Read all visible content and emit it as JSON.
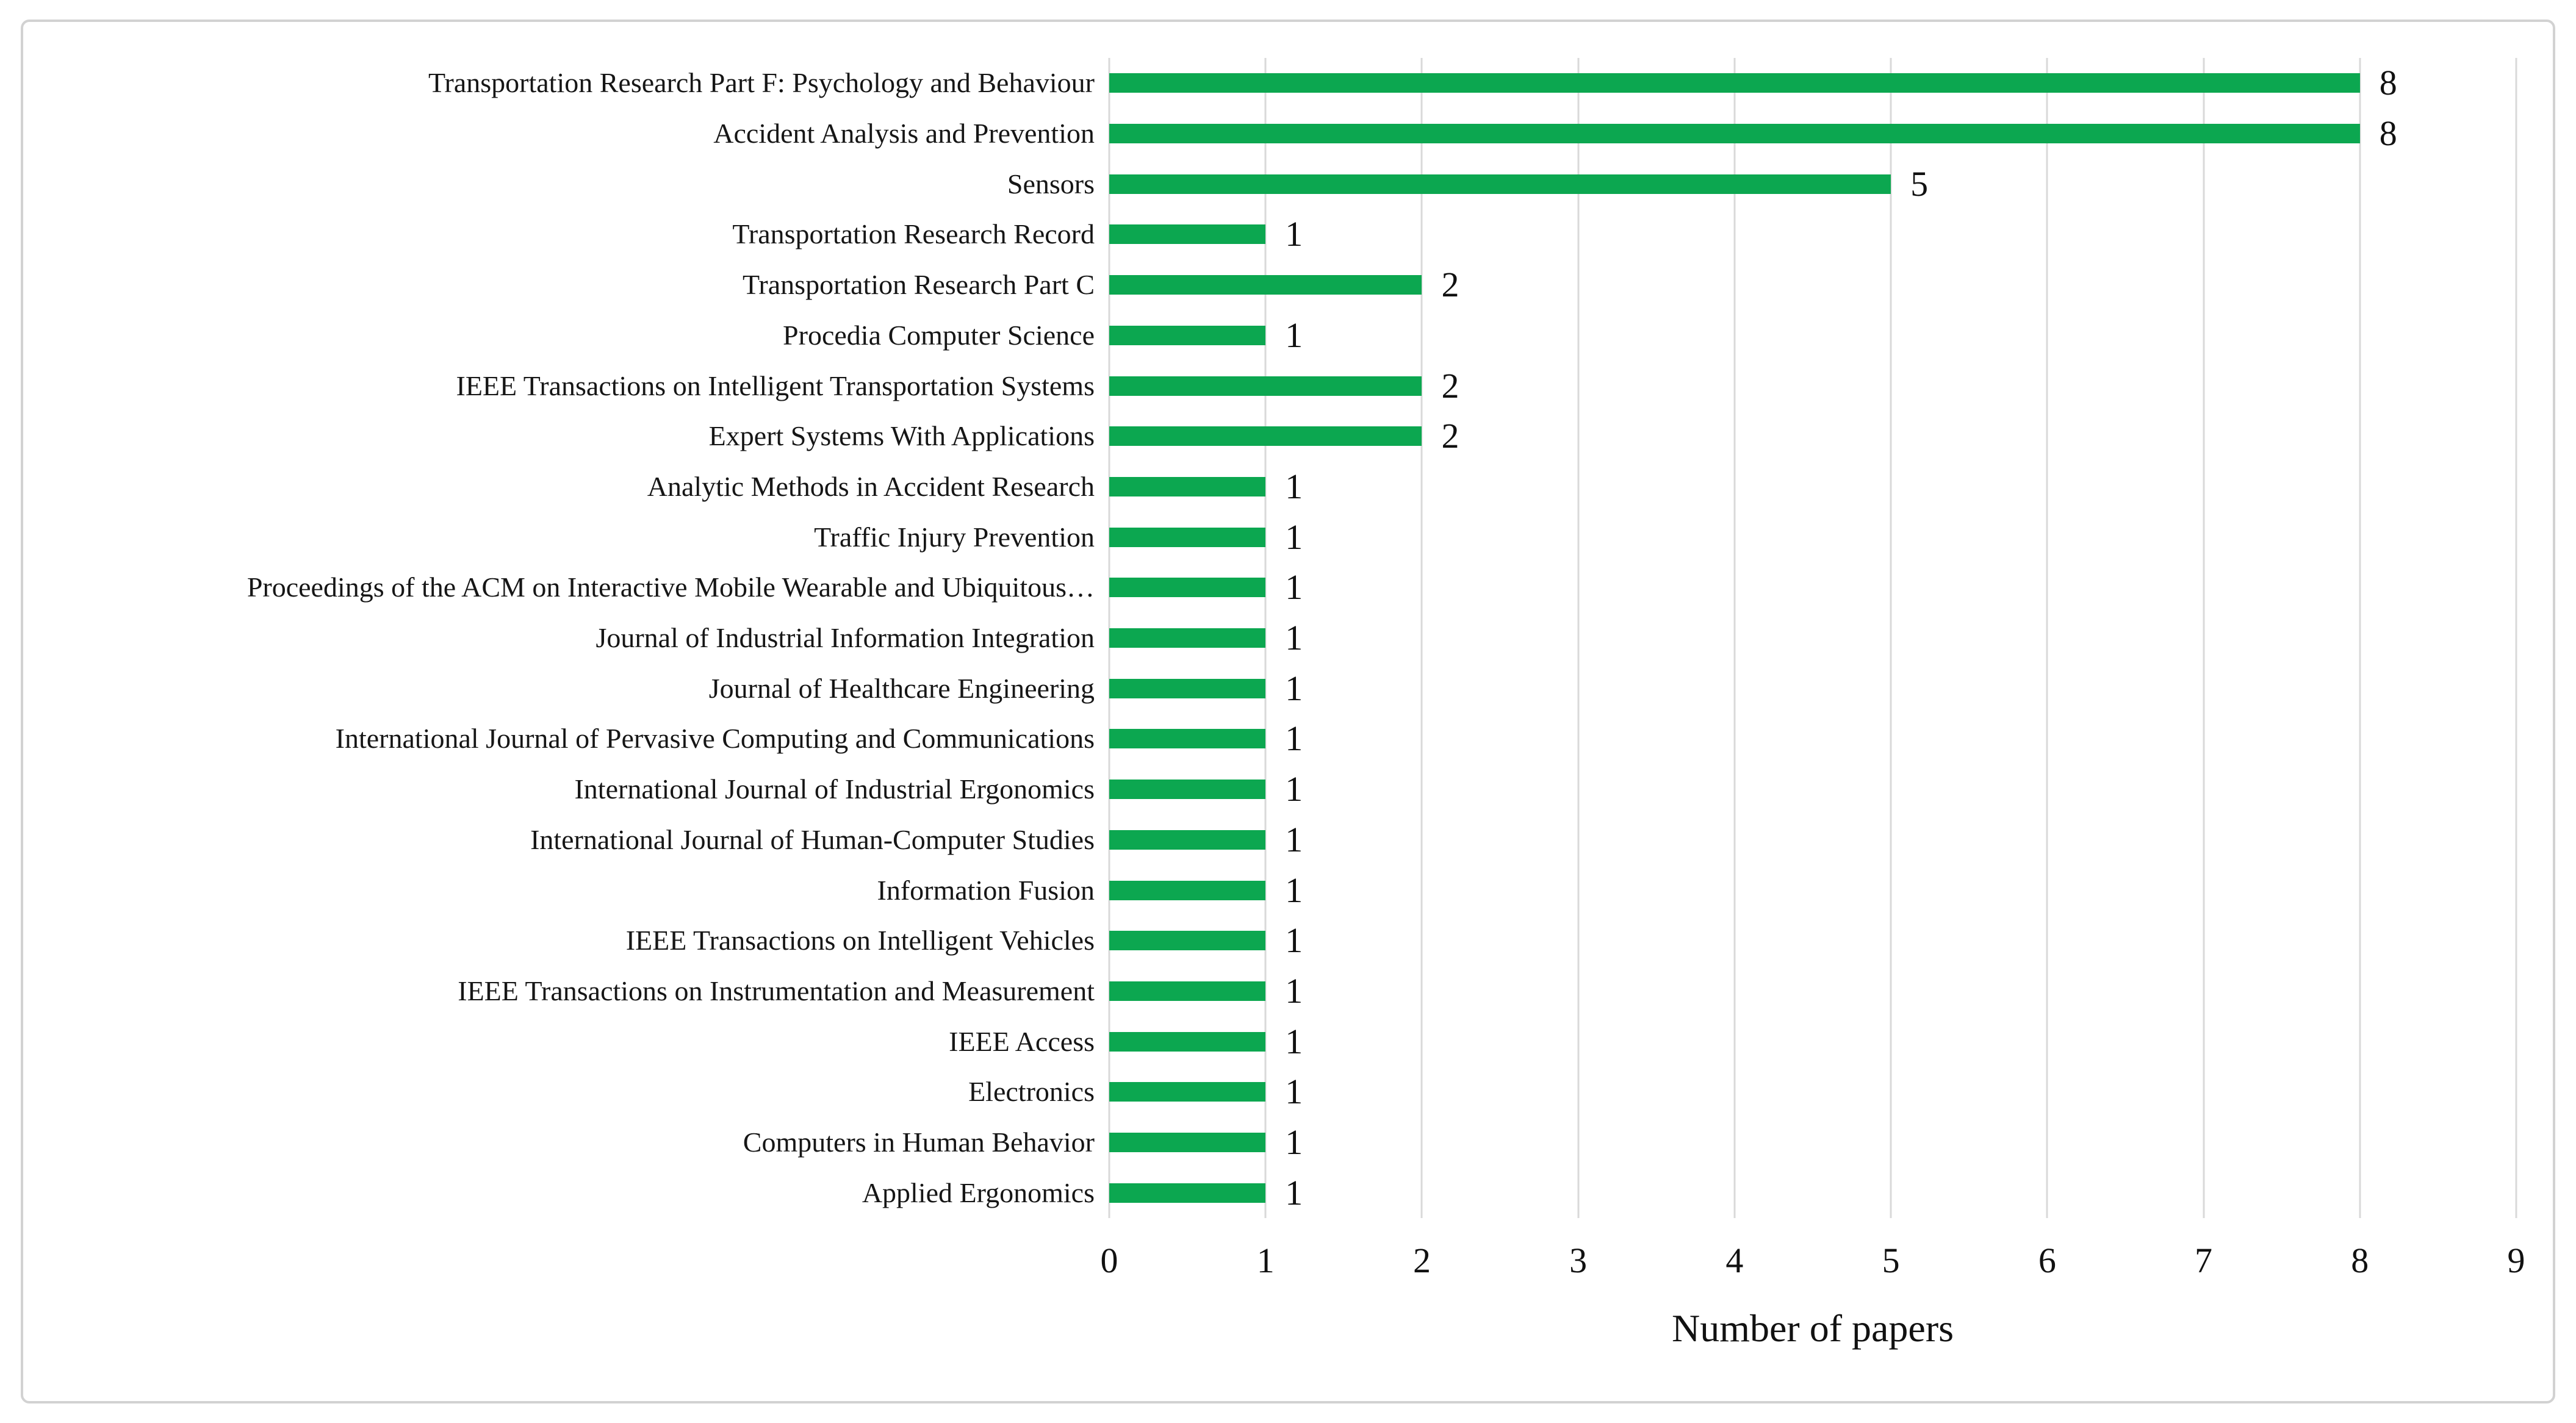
{
  "figure": {
    "background": "#ffffff",
    "frame_border_color": "#d2d2d2"
  },
  "chart_data": {
    "type": "bar",
    "orientation": "horizontal",
    "title": "",
    "xlabel": "Number of papers",
    "ylabel": "",
    "xlim": [
      0,
      9
    ],
    "xticks": [
      "0",
      "1",
      "2",
      "3",
      "4",
      "5",
      "6",
      "7",
      "8",
      "9"
    ],
    "grid": "vertical-gridlines-on",
    "legend": "none",
    "bar_color": "#0ca750",
    "gridline_color": "#d9d9d9",
    "categories": [
      "Transportation Research Part F: Psychology and Behaviour",
      "Accident Analysis and Prevention",
      "Sensors",
      "Transportation Research Record",
      "Transportation Research Part C",
      "Procedia Computer Science",
      "IEEE Transactions on Intelligent Transportation Systems",
      "Expert Systems With Applications",
      "Analytic Methods in Accident Research",
      "Traffic Injury Prevention",
      "Proceedings of the ACM on Interactive Mobile Wearable and Ubiquitous…",
      "Journal of Industrial Information Integration",
      "Journal of Healthcare Engineering",
      "International Journal of Pervasive Computing and Communications",
      "International Journal of Industrial Ergonomics",
      "International Journal of Human-Computer Studies",
      "Information Fusion",
      "IEEE Transactions on Intelligent Vehicles",
      "IEEE Transactions on Instrumentation and Measurement",
      "IEEE Access",
      "Electronics",
      "Computers in Human Behavior",
      "Applied Ergonomics"
    ],
    "values": [
      8,
      8,
      5,
      1,
      2,
      1,
      2,
      2,
      1,
      1,
      1,
      1,
      1,
      1,
      1,
      1,
      1,
      1,
      1,
      1,
      1,
      1,
      1
    ],
    "data_labels": [
      "8",
      "8",
      "5",
      "1",
      "2",
      "1",
      "2",
      "2",
      "1",
      "1",
      "1",
      "1",
      "1",
      "1",
      "1",
      "1",
      "1",
      "1",
      "1",
      "1",
      "1",
      "1",
      "1"
    ]
  }
}
